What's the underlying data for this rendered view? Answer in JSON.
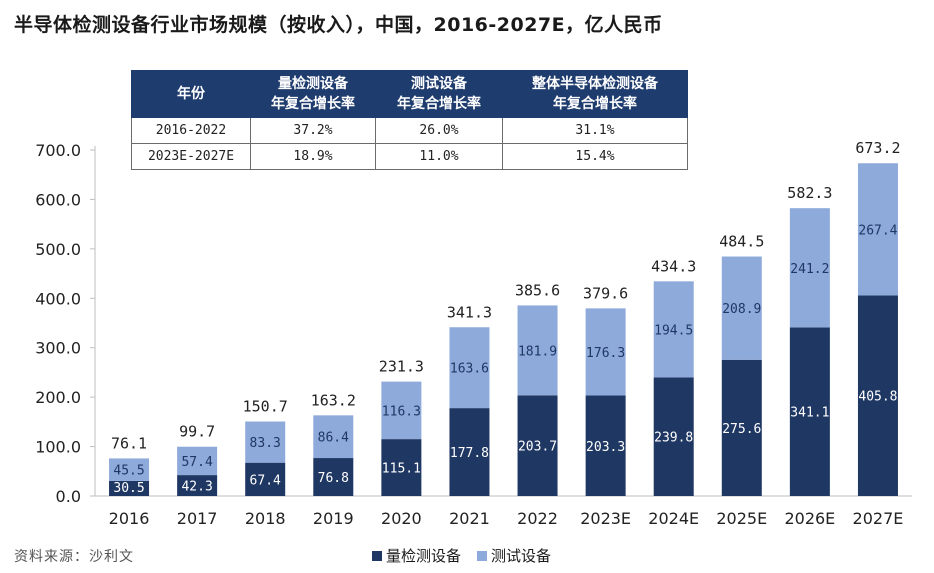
{
  "title": "半导体检测设备行业市场规模（按收入），中国，2016-2027E，亿人民币",
  "source": "资料来源：沙利文",
  "colors": {
    "bottom": "#1f3763",
    "top": "#8eaadb",
    "header": "#1f3c6e"
  },
  "table": {
    "headers": [
      [
        "年份"
      ],
      [
        "量检测设备",
        "年复合增长率"
      ],
      [
        "测试设备",
        "年复合增长率"
      ],
      [
        "整体半导体检测设备",
        "年复合增长率"
      ]
    ],
    "rows": [
      [
        "2016-2022",
        "37.2%",
        "26.0%",
        "31.1%"
      ],
      [
        "2023E-2027E",
        "18.9%",
        "11.0%",
        "15.4%"
      ]
    ]
  },
  "chart_data": {
    "type": "bar",
    "stacked": true,
    "categories": [
      "2016",
      "2017",
      "2018",
      "2019",
      "2020",
      "2021",
      "2022",
      "2023E",
      "2024E",
      "2025E",
      "2026E",
      "2027E"
    ],
    "series": [
      {
        "name": "量检测设备",
        "values": [
          30.5,
          42.3,
          67.4,
          76.8,
          115.1,
          177.8,
          203.7,
          203.3,
          239.8,
          275.6,
          341.1,
          405.8
        ]
      },
      {
        "name": "测试设备",
        "values": [
          45.5,
          57.4,
          83.3,
          86.4,
          116.3,
          163.6,
          181.9,
          176.3,
          194.5,
          208.9,
          241.2,
          267.4
        ]
      }
    ],
    "totals": [
      76.1,
      99.7,
      150.7,
      163.2,
      231.3,
      341.3,
      385.6,
      379.6,
      434.3,
      484.5,
      582.3,
      673.2
    ],
    "ylim": [
      0,
      700
    ],
    "yticks": [
      "0.0",
      "100.0",
      "200.0",
      "300.0",
      "400.0",
      "500.0",
      "600.0",
      "700.0"
    ],
    "legend_position": "bottom"
  }
}
